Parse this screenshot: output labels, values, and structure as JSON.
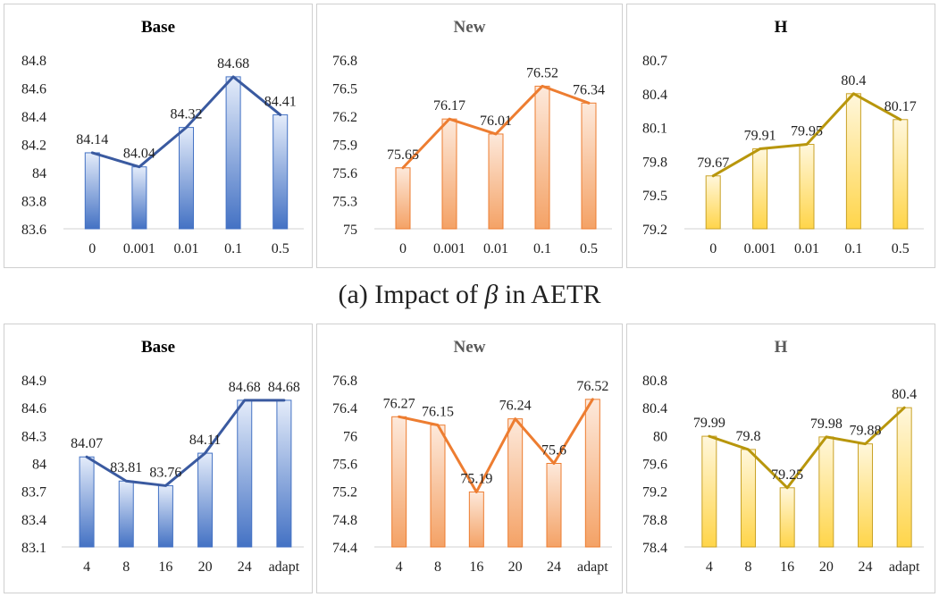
{
  "caption": {
    "prefix": "(a) Impact of ",
    "symbol": "β",
    "suffix": " in AETR"
  },
  "colors": {
    "base": {
      "line": "#3a5aa0",
      "bar_top": "#e4ecfa",
      "bar_bottom": "#4472c4",
      "border": "#4472c4"
    },
    "new": {
      "line": "#ed7d31",
      "bar_top": "#fde9db",
      "bar_bottom": "#f4a266",
      "border": "#ed7d31"
    },
    "h": {
      "line": "#b8960c",
      "bar_top": "#fff7dc",
      "bar_bottom": "#ffd54a",
      "border": "#c9a227"
    }
  },
  "chart_data": [
    {
      "type": "bar",
      "title": "Base",
      "title_color": "#000000",
      "scheme": "base",
      "categories": [
        "0",
        "0.001",
        "0.01",
        "0.1",
        "0.5"
      ],
      "values": [
        84.14,
        84.04,
        84.32,
        84.68,
        84.41
      ],
      "labels": [
        "84.14",
        "84.04",
        "84.32",
        "84.68",
        "84.41"
      ],
      "ylim": [
        83.6,
        84.8
      ],
      "yticks": [
        83.6,
        83.8,
        84,
        84.2,
        84.4,
        84.6,
        84.8
      ],
      "ytick_labels": [
        "83.6",
        "83.8",
        "84",
        "84.2",
        "84.4",
        "84.6",
        "84.8"
      ],
      "overlay": "line"
    },
    {
      "type": "bar",
      "title": "New",
      "title_color": "#595959",
      "scheme": "new",
      "categories": [
        "0",
        "0.001",
        "0.01",
        "0.1",
        "0.5"
      ],
      "values": [
        75.65,
        76.17,
        76.01,
        76.52,
        76.34
      ],
      "labels": [
        "75.65",
        "76.17",
        "76.01",
        "76.52",
        "76.34"
      ],
      "ylim": [
        75,
        76.8
      ],
      "yticks": [
        75,
        75.3,
        75.6,
        75.9,
        76.2,
        76.5,
        76.8
      ],
      "ytick_labels": [
        "75",
        "75.3",
        "75.6",
        "75.9",
        "76.2",
        "76.5",
        "76.8"
      ],
      "overlay": "line"
    },
    {
      "type": "bar",
      "title": "H",
      "title_color": "#000000",
      "scheme": "h",
      "categories": [
        "0",
        "0.001",
        "0.01",
        "0.1",
        "0.5"
      ],
      "values": [
        79.67,
        79.91,
        79.95,
        80.4,
        80.17
      ],
      "labels": [
        "79.67",
        "79.91",
        "79.95",
        "80.4",
        "80.17"
      ],
      "ylim": [
        79.2,
        80.7
      ],
      "yticks": [
        79.2,
        79.5,
        79.8,
        80.1,
        80.4,
        80.7
      ],
      "ytick_labels": [
        "79.2",
        "79.5",
        "79.8",
        "80.1",
        "80.4",
        "80.7"
      ],
      "overlay": "line"
    },
    {
      "type": "bar",
      "title": "Base",
      "title_color": "#000000",
      "scheme": "base",
      "categories": [
        "4",
        "8",
        "16",
        "20",
        "24",
        "adapt"
      ],
      "values": [
        84.07,
        83.81,
        83.76,
        84.11,
        84.68,
        84.68
      ],
      "labels": [
        "84.07",
        "83.81",
        "83.76",
        "84.11",
        "84.68",
        "84.68"
      ],
      "ylim": [
        83.1,
        84.9
      ],
      "yticks": [
        83.1,
        83.4,
        83.7,
        84,
        84.3,
        84.6,
        84.9
      ],
      "ytick_labels": [
        "83.1",
        "83.4",
        "83.7",
        "84",
        "84.3",
        "84.6",
        "84.9"
      ],
      "overlay": "line"
    },
    {
      "type": "bar",
      "title": "New",
      "title_color": "#595959",
      "scheme": "new",
      "categories": [
        "4",
        "8",
        "16",
        "20",
        "24",
        "adapt"
      ],
      "values": [
        76.27,
        76.15,
        75.19,
        76.24,
        75.6,
        76.52
      ],
      "labels": [
        "76.27",
        "76.15",
        "75.19",
        "76.24",
        "75.6",
        "76.52"
      ],
      "ylim": [
        74.4,
        76.8
      ],
      "yticks": [
        74.4,
        74.8,
        75.2,
        75.6,
        76,
        76.4,
        76.8
      ],
      "ytick_labels": [
        "74.4",
        "74.8",
        "75.2",
        "75.6",
        "76",
        "76.4",
        "76.8"
      ],
      "overlay": "line"
    },
    {
      "type": "bar",
      "title": "H",
      "title_color": "#595959",
      "scheme": "h",
      "categories": [
        "4",
        "8",
        "16",
        "20",
        "24",
        "adapt"
      ],
      "values": [
        79.99,
        79.8,
        79.25,
        79.98,
        79.88,
        80.4
      ],
      "labels": [
        "79.99",
        "79.8",
        "79.25",
        "79.98",
        "79.88",
        "80.4"
      ],
      "ylim": [
        78.4,
        80.8
      ],
      "yticks": [
        78.4,
        78.8,
        79.2,
        79.6,
        80,
        80.4,
        80.8
      ],
      "ytick_labels": [
        "78.4",
        "78.8",
        "79.2",
        "79.6",
        "80",
        "80.4",
        "80.8"
      ],
      "overlay": "line"
    }
  ]
}
